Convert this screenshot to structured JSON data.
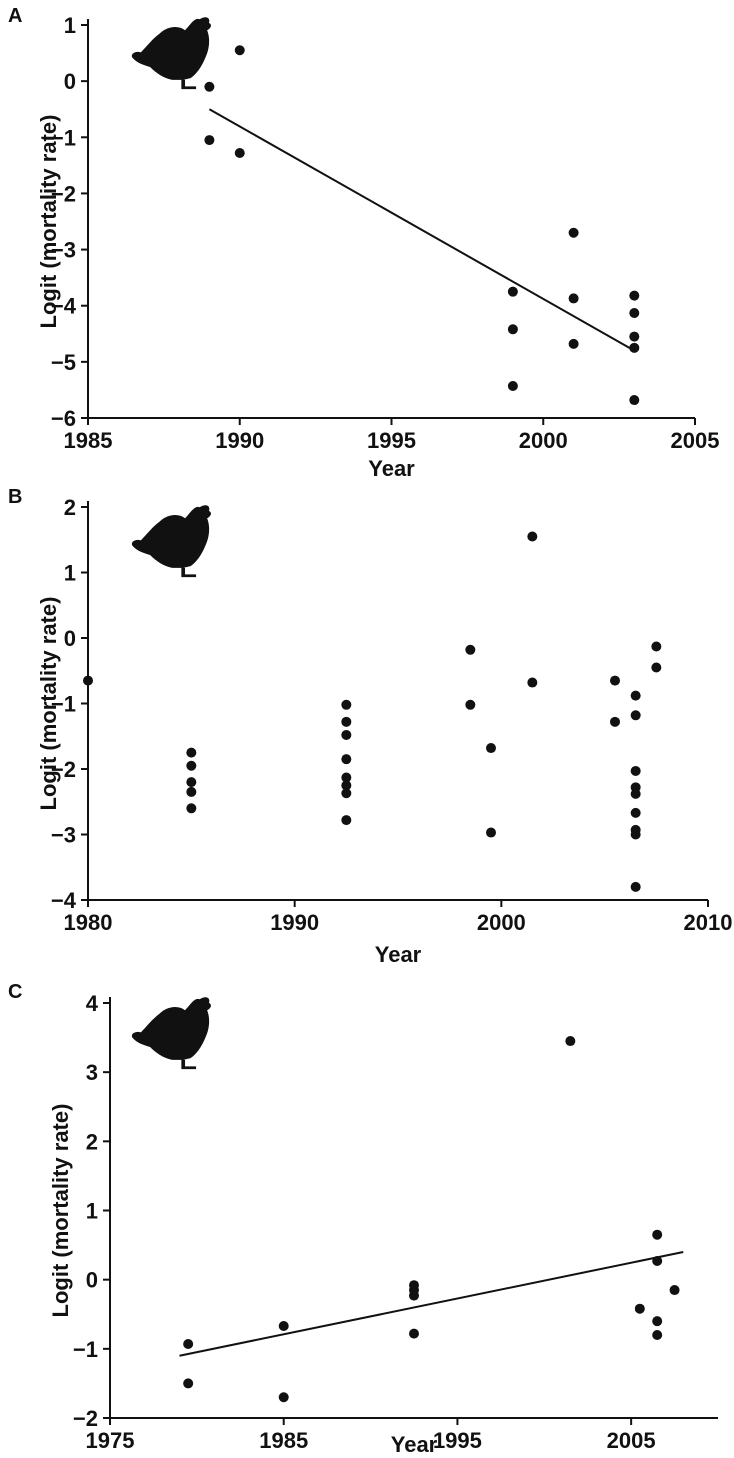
{
  "chart_data": [
    {
      "panel": "A",
      "type": "scatter",
      "xlabel": "Year",
      "ylabel": "Logit (mortality rate)",
      "xlim": [
        1985,
        2005
      ],
      "ylim": [
        -6,
        1
      ],
      "xticks": [
        1985,
        1990,
        1995,
        2000,
        2005
      ],
      "yticks": [
        1,
        0,
        -1,
        -2,
        -3,
        -4,
        -5,
        -6
      ],
      "points": [
        {
          "x": 1989,
          "y": -0.1
        },
        {
          "x": 1989,
          "y": -1.05
        },
        {
          "x": 1990,
          "y": 0.55
        },
        {
          "x": 1990,
          "y": -1.28
        },
        {
          "x": 1999,
          "y": -3.75
        },
        {
          "x": 1999,
          "y": -4.42
        },
        {
          "x": 1999,
          "y": -5.43
        },
        {
          "x": 2001,
          "y": -2.7
        },
        {
          "x": 2001,
          "y": -3.87
        },
        {
          "x": 2001,
          "y": -4.68
        },
        {
          "x": 2003,
          "y": -3.82
        },
        {
          "x": 2003,
          "y": -4.13
        },
        {
          "x": 2003,
          "y": -4.55
        },
        {
          "x": 2003,
          "y": -4.75
        },
        {
          "x": 2003,
          "y": -5.68
        }
      ],
      "trend_line": [
        [
          1989,
          -0.5
        ],
        [
          2003,
          -4.8
        ]
      ],
      "icon": "chicken-icon",
      "grid": false
    },
    {
      "panel": "B",
      "type": "scatter",
      "xlabel": "Year",
      "ylabel": "Logit (mortality rate)",
      "xlim": [
        1980,
        2010
      ],
      "ylim": [
        -4,
        2
      ],
      "xticks": [
        1980,
        1990,
        2000,
        2010
      ],
      "yticks": [
        2,
        1,
        0,
        -1,
        -2,
        -3,
        -4
      ],
      "points": [
        {
          "x": 1980,
          "y": -0.65
        },
        {
          "x": 1985,
          "y": -1.75
        },
        {
          "x": 1985,
          "y": -1.95
        },
        {
          "x": 1985,
          "y": -2.2
        },
        {
          "x": 1985,
          "y": -2.35
        },
        {
          "x": 1985,
          "y": -2.6
        },
        {
          "x": 1992.5,
          "y": -1.02
        },
        {
          "x": 1992.5,
          "y": -1.28
        },
        {
          "x": 1992.5,
          "y": -1.48
        },
        {
          "x": 1992.5,
          "y": -1.85
        },
        {
          "x": 1992.5,
          "y": -2.13
        },
        {
          "x": 1992.5,
          "y": -2.25
        },
        {
          "x": 1992.5,
          "y": -2.37
        },
        {
          "x": 1992.5,
          "y": -2.78
        },
        {
          "x": 1998.5,
          "y": -0.18
        },
        {
          "x": 1998.5,
          "y": -1.02
        },
        {
          "x": 1999.5,
          "y": -1.68
        },
        {
          "x": 1999.5,
          "y": -2.97
        },
        {
          "x": 2001.5,
          "y": 1.55
        },
        {
          "x": 2001.5,
          "y": -0.68
        },
        {
          "x": 2005.5,
          "y": -0.65
        },
        {
          "x": 2005.5,
          "y": -1.28
        },
        {
          "x": 2006.5,
          "y": -0.88
        },
        {
          "x": 2006.5,
          "y": -1.18
        },
        {
          "x": 2006.5,
          "y": -2.03
        },
        {
          "x": 2006.5,
          "y": -2.28
        },
        {
          "x": 2006.5,
          "y": -2.38
        },
        {
          "x": 2006.5,
          "y": -2.67
        },
        {
          "x": 2006.5,
          "y": -2.93
        },
        {
          "x": 2006.5,
          "y": -3.0
        },
        {
          "x": 2006.5,
          "y": -3.8
        },
        {
          "x": 2007.5,
          "y": -0.13
        },
        {
          "x": 2007.5,
          "y": -0.45
        }
      ],
      "icon": "chicken-icon",
      "grid": false
    },
    {
      "panel": "C",
      "type": "scatter",
      "xlabel": "Year",
      "ylabel": "Logit (mortality rate)",
      "xlim": [
        1975,
        2010
      ],
      "ylim": [
        -2,
        4
      ],
      "xticks": [
        1975,
        1985,
        1995,
        2005
      ],
      "yticks": [
        4,
        3,
        2,
        1,
        0,
        -1,
        -2
      ],
      "points": [
        {
          "x": 1979.5,
          "y": -0.93
        },
        {
          "x": 1979.5,
          "y": -1.5
        },
        {
          "x": 1985,
          "y": -0.67
        },
        {
          "x": 1985,
          "y": -1.7
        },
        {
          "x": 1992.5,
          "y": -0.08
        },
        {
          "x": 1992.5,
          "y": -0.15
        },
        {
          "x": 1992.5,
          "y": -0.23
        },
        {
          "x": 1992.5,
          "y": -0.78
        },
        {
          "x": 2001.5,
          "y": 3.45
        },
        {
          "x": 2005.5,
          "y": -0.42
        },
        {
          "x": 2006.5,
          "y": 0.65
        },
        {
          "x": 2006.5,
          "y": 0.27
        },
        {
          "x": 2006.5,
          "y": -0.6
        },
        {
          "x": 2006.5,
          "y": -0.8
        },
        {
          "x": 2007.5,
          "y": -0.15
        }
      ],
      "trend_line": [
        [
          1979,
          -1.1
        ],
        [
          2008,
          0.4
        ]
      ],
      "icon": "chicken-icon",
      "grid": false
    }
  ]
}
